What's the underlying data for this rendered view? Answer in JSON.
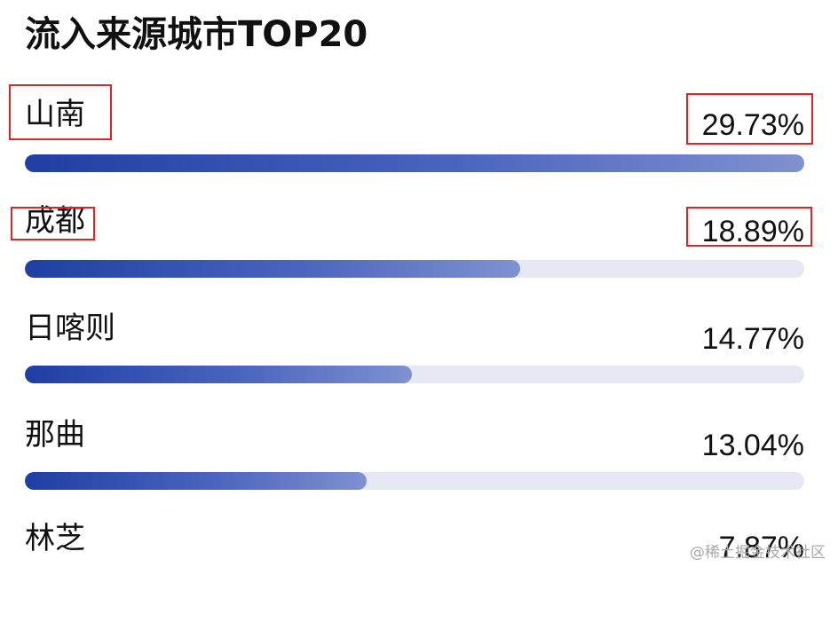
{
  "header": {
    "title": "流入来源城市TOP20"
  },
  "rank": {
    "items": [
      {
        "city": "山南",
        "percent_label": "29.73%",
        "share": 29.73
      },
      {
        "city": "成都",
        "percent_label": "18.89%",
        "share": 18.89
      },
      {
        "city": "日喀则",
        "percent_label": "14.77%",
        "share": 14.77
      },
      {
        "city": "那曲",
        "percent_label": "13.04%",
        "share": 13.04
      },
      {
        "city": "林芝",
        "percent_label": "7.87%",
        "share": 7.87
      }
    ],
    "max_share": 29.73
  },
  "watermark": {
    "text": "@稀土掘金技术社区"
  },
  "colors": {
    "bar_start": "#1e3fa3",
    "bar_end": "#7f91d0",
    "track": "#e5e7f3",
    "highlight_box": "#e02424"
  }
}
